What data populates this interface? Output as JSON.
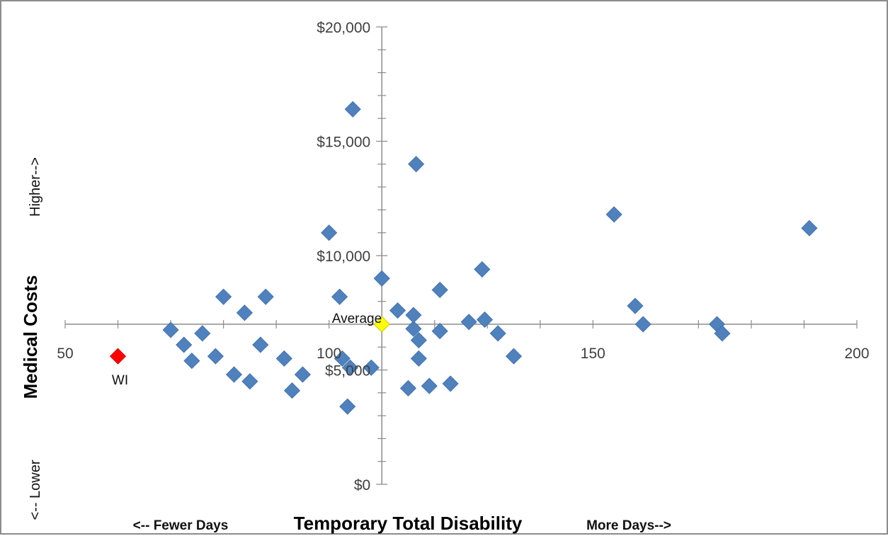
{
  "chart_data": {
    "type": "scatter",
    "title": "",
    "xlabel": "Temporary Total Disability",
    "ylabel": "Medical Costs",
    "x_hint_left": "<-- Fewer Days",
    "x_hint_right": "More Days-->",
    "y_hint_top": "Higher-->",
    "y_hint_bottom": "<-- Lower",
    "xlim": [
      50,
      200
    ],
    "ylim": [
      0,
      20000
    ],
    "x_ticks": [
      50,
      100,
      150,
      200
    ],
    "x_tick_labels": [
      "50",
      "100",
      "150",
      "200"
    ],
    "y_ticks": [
      0,
      5000,
      10000,
      15000,
      20000
    ],
    "y_tick_labels": [
      "$0",
      "$5,000",
      "$10,000",
      "$15,000",
      "$20,000"
    ],
    "axes_cross": {
      "x": 110,
      "y": 7000
    },
    "grid": false,
    "series": [
      {
        "color": "#4f81bd",
        "marker": "diamond",
        "points": [
          [
            70,
            6750
          ],
          [
            72.5,
            6100
          ],
          [
            74,
            5400
          ],
          [
            76,
            6600
          ],
          [
            78.5,
            5600
          ],
          [
            80,
            8200
          ],
          [
            82,
            4800
          ],
          [
            84,
            7500
          ],
          [
            85,
            4500
          ],
          [
            87,
            6100
          ],
          [
            88,
            8200
          ],
          [
            91.5,
            5500
          ],
          [
            93,
            4100
          ],
          [
            95,
            4800
          ],
          [
            100,
            11000
          ],
          [
            102,
            8200
          ],
          [
            102.5,
            5500
          ],
          [
            103.5,
            3400
          ],
          [
            104,
            5100
          ],
          [
            104.5,
            16400
          ],
          [
            108,
            5100
          ],
          [
            110,
            9000
          ],
          [
            113,
            7600
          ],
          [
            115,
            4200
          ],
          [
            116,
            6800
          ],
          [
            116,
            7400
          ],
          [
            116.5,
            14000
          ],
          [
            117,
            6300
          ],
          [
            117,
            5500
          ],
          [
            119,
            4300
          ],
          [
            121,
            6700
          ],
          [
            121,
            8500
          ],
          [
            123,
            4400
          ],
          [
            126.5,
            7100
          ],
          [
            129,
            9400
          ],
          [
            129.5,
            7200
          ],
          [
            132,
            6600
          ],
          [
            135,
            5600
          ],
          [
            154,
            11800
          ],
          [
            158,
            7800
          ],
          [
            159.5,
            7000
          ],
          [
            173.5,
            7000
          ],
          [
            174.5,
            6600
          ],
          [
            191,
            11200
          ]
        ]
      },
      {
        "color": "#ffff00",
        "marker": "diamond",
        "points": [
          [
            110,
            7000
          ]
        ],
        "point_labels": [
          "Average"
        ]
      },
      {
        "color": "#ff0000",
        "marker": "diamond",
        "points": [
          [
            60,
            5600
          ]
        ],
        "point_labels": [
          "WI"
        ]
      }
    ]
  }
}
